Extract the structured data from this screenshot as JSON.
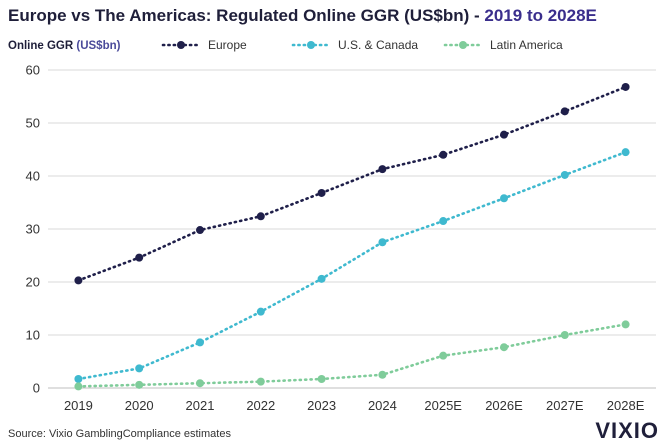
{
  "title": {
    "main": "Europe vs The Americas: Regulated Online GGR (US$bn) - ",
    "accent": "2019 to 2028E"
  },
  "axis": {
    "ylabel_main": "Online GGR ",
    "ylabel_unit": "(US$bn)"
  },
  "source": "Source: Vixio GamblingCompliance estimates",
  "logo": "VIXIO",
  "colors": {
    "europe": "#1f1f4a",
    "us_canada": "#3fb9cf",
    "latin_america": "#7fcc9a",
    "grid": "#d9d9d9",
    "title": "#1f1f3a",
    "accent": "#3a2e8c"
  },
  "chart_data": {
    "type": "line",
    "title": "Europe vs The Americas: Regulated Online GGR (US$bn) - 2019 to 2028E",
    "xlabel": "",
    "ylabel": "Online GGR (US$bn)",
    "categories": [
      "2019",
      "2020",
      "2021",
      "2022",
      "2023",
      "2024",
      "2025E",
      "2026E",
      "2027E",
      "2028E"
    ],
    "ylim": [
      0,
      60
    ],
    "yticks": [
      0,
      10,
      20,
      30,
      40,
      50,
      60
    ],
    "grid": "horizontal",
    "legend_position": "top",
    "series": [
      {
        "name": "Europe",
        "color": "#1f1f4a",
        "values": [
          20.3,
          24.6,
          29.8,
          32.4,
          36.8,
          41.3,
          44.0,
          47.8,
          52.2,
          56.8
        ]
      },
      {
        "name": "U.S. & Canada",
        "color": "#3fb9cf",
        "values": [
          1.7,
          3.7,
          8.6,
          14.4,
          20.6,
          27.5,
          31.5,
          35.8,
          40.2,
          44.5
        ]
      },
      {
        "name": "Latin America",
        "color": "#7fcc9a",
        "values": [
          0.3,
          0.6,
          0.9,
          1.2,
          1.7,
          2.5,
          6.1,
          7.7,
          10.0,
          12.0
        ]
      }
    ]
  }
}
